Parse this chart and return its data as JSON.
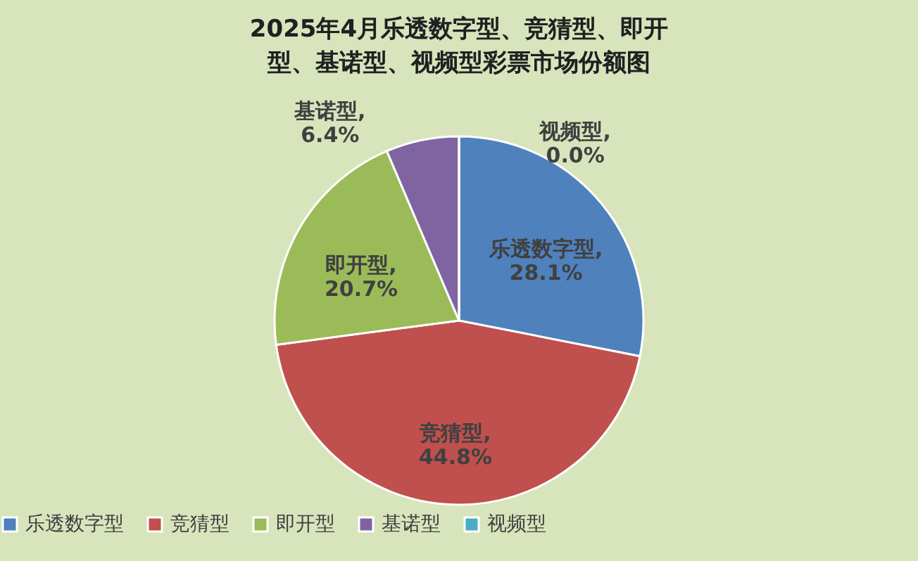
{
  "chart_data": {
    "type": "pie",
    "title": "2025年4月乐透数字型、竞猜型、即开型、基诺型、视频型彩票市场份额图",
    "categories": [
      "乐透数字型",
      "竞猜型",
      "即开型",
      "基诺型",
      "视频型"
    ],
    "values": [
      28.1,
      44.8,
      20.7,
      6.4,
      0.0
    ],
    "colors": [
      "#4f81bd",
      "#c0504d",
      "#9bbb59",
      "#8064a2",
      "#4bacc6"
    ],
    "value_labels": [
      "乐透数字型, 28.1%",
      "竞猜型, 44.8%",
      "即开型, 20.7%",
      "基诺型, 6.4%",
      "视频型, 0.0%"
    ],
    "legend": "bottom"
  }
}
